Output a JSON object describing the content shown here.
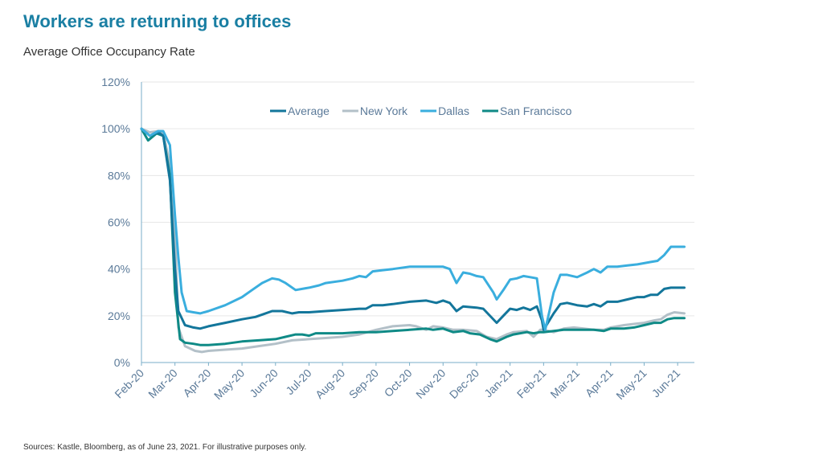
{
  "header": {
    "title": "Workers are returning to offices",
    "subtitle": "Average Office Occupancy Rate"
  },
  "footnote": "Sources: Kastle, Bloomberg, as of June 23, 2021. For illustrative purposes only.",
  "colors": {
    "title": "#1a7fa3",
    "Average": "#13769b",
    "New York": "#b3c0c8",
    "Dallas": "#3aaede",
    "San Francisco": "#0f8a86",
    "axis_text": "#5b7a99",
    "axis_line": "#7aaec8",
    "grid": "#e6e6e6"
  },
  "chart_data": {
    "type": "line",
    "title": "Workers are returning to offices",
    "subtitle": "Average Office Occupancy Rate",
    "xlabel": "",
    "ylabel": "",
    "x_tick_labels": [
      "Feb-20",
      "Mar-20",
      "Apr-20",
      "May-20",
      "Jun-20",
      "Jul-20",
      "Aug-20",
      "Sep-20",
      "Oct-20",
      "Nov-20",
      "Dec-20",
      "Jan-21",
      "Feb-21",
      "Mar-21",
      "Apr-21",
      "May-21",
      "Jun-21"
    ],
    "y_tick_labels": [
      "0%",
      "20%",
      "40%",
      "60%",
      "80%",
      "100%",
      "120%"
    ],
    "ylim": [
      0,
      120
    ],
    "xlim": [
      0,
      16.5
    ],
    "grid": "horizontal",
    "legend_position": "top-center",
    "series": [
      {
        "name": "Average",
        "points": [
          [
            0,
            100
          ],
          [
            0.25,
            97
          ],
          [
            0.5,
            98.5
          ],
          [
            0.65,
            97
          ],
          [
            0.85,
            78
          ],
          [
            1.0,
            40
          ],
          [
            1.1,
            22
          ],
          [
            1.3,
            16
          ],
          [
            1.55,
            15
          ],
          [
            1.75,
            14.5
          ],
          [
            2.0,
            15.5
          ],
          [
            2.5,
            17
          ],
          [
            3.0,
            18.5
          ],
          [
            3.4,
            19.5
          ],
          [
            3.7,
            21
          ],
          [
            3.9,
            22
          ],
          [
            4.2,
            22
          ],
          [
            4.5,
            21
          ],
          [
            4.7,
            21.5
          ],
          [
            5.0,
            21.5
          ],
          [
            5.5,
            22
          ],
          [
            6.0,
            22.5
          ],
          [
            6.5,
            23
          ],
          [
            6.7,
            23
          ],
          [
            6.9,
            24.5
          ],
          [
            7.2,
            24.5
          ],
          [
            7.5,
            25
          ],
          [
            8.0,
            26
          ],
          [
            8.5,
            26.5
          ],
          [
            8.8,
            25.5
          ],
          [
            9.0,
            26.5
          ],
          [
            9.2,
            25.5
          ],
          [
            9.4,
            22
          ],
          [
            9.6,
            24
          ],
          [
            10.0,
            23.5
          ],
          [
            10.2,
            23
          ],
          [
            10.6,
            17
          ],
          [
            10.8,
            20
          ],
          [
            11.0,
            23
          ],
          [
            11.2,
            22.5
          ],
          [
            11.4,
            23.5
          ],
          [
            11.6,
            22.5
          ],
          [
            11.8,
            24
          ],
          [
            11.95,
            18
          ],
          [
            12.0,
            14
          ],
          [
            12.3,
            21
          ],
          [
            12.5,
            25
          ],
          [
            12.7,
            25.5
          ],
          [
            13.0,
            24.5
          ],
          [
            13.3,
            24
          ],
          [
            13.5,
            25
          ],
          [
            13.7,
            24
          ],
          [
            13.9,
            26
          ],
          [
            14.2,
            26
          ],
          [
            14.5,
            27
          ],
          [
            14.8,
            28
          ],
          [
            15.0,
            28
          ],
          [
            15.2,
            29
          ],
          [
            15.4,
            29
          ],
          [
            15.6,
            31.5
          ],
          [
            15.8,
            32
          ],
          [
            16.0,
            32
          ],
          [
            16.2,
            32
          ]
        ]
      },
      {
        "name": "New York",
        "points": [
          [
            0,
            100
          ],
          [
            0.25,
            98.5
          ],
          [
            0.5,
            99
          ],
          [
            0.65,
            98
          ],
          [
            0.85,
            85
          ],
          [
            1.0,
            55
          ],
          [
            1.1,
            15
          ],
          [
            1.3,
            7
          ],
          [
            1.6,
            5
          ],
          [
            1.8,
            4.5
          ],
          [
            2.0,
            5
          ],
          [
            2.5,
            5.5
          ],
          [
            3.0,
            6
          ],
          [
            3.5,
            7
          ],
          [
            4.0,
            8
          ],
          [
            4.5,
            9.5
          ],
          [
            5.0,
            10
          ],
          [
            5.5,
            10.5
          ],
          [
            6.0,
            11
          ],
          [
            6.5,
            12
          ],
          [
            7.0,
            14
          ],
          [
            7.5,
            15.5
          ],
          [
            8.0,
            16
          ],
          [
            8.2,
            15.5
          ],
          [
            8.5,
            14
          ],
          [
            8.7,
            15.5
          ],
          [
            9.0,
            15
          ],
          [
            9.3,
            14
          ],
          [
            9.6,
            14
          ],
          [
            10.0,
            13.5
          ],
          [
            10.3,
            11
          ],
          [
            10.6,
            10
          ],
          [
            10.9,
            12
          ],
          [
            11.1,
            13
          ],
          [
            11.5,
            13.5
          ],
          [
            11.7,
            11
          ],
          [
            11.9,
            14
          ],
          [
            12.0,
            14
          ],
          [
            12.3,
            13
          ],
          [
            12.6,
            14.5
          ],
          [
            12.9,
            15
          ],
          [
            13.2,
            14.5
          ],
          [
            13.5,
            14
          ],
          [
            13.8,
            14
          ],
          [
            14.0,
            15
          ],
          [
            14.4,
            16
          ],
          [
            14.7,
            16.5
          ],
          [
            15.0,
            17
          ],
          [
            15.3,
            18
          ],
          [
            15.5,
            18.5
          ],
          [
            15.7,
            20.5
          ],
          [
            15.9,
            21.5
          ],
          [
            16.2,
            21
          ]
        ]
      },
      {
        "name": "Dallas",
        "points": [
          [
            0,
            100
          ],
          [
            0.25,
            97
          ],
          [
            0.5,
            99
          ],
          [
            0.65,
            99
          ],
          [
            0.85,
            93
          ],
          [
            1.0,
            63
          ],
          [
            1.1,
            45
          ],
          [
            1.2,
            30
          ],
          [
            1.35,
            22
          ],
          [
            1.55,
            21.5
          ],
          [
            1.75,
            21
          ],
          [
            2.0,
            22
          ],
          [
            2.5,
            24.5
          ],
          [
            3.0,
            28
          ],
          [
            3.3,
            31
          ],
          [
            3.6,
            34
          ],
          [
            3.9,
            36
          ],
          [
            4.1,
            35.5
          ],
          [
            4.3,
            34
          ],
          [
            4.6,
            31
          ],
          [
            5.0,
            32
          ],
          [
            5.3,
            33
          ],
          [
            5.5,
            34
          ],
          [
            6.0,
            35
          ],
          [
            6.3,
            36
          ],
          [
            6.5,
            37
          ],
          [
            6.7,
            36.5
          ],
          [
            6.9,
            39
          ],
          [
            7.2,
            39.5
          ],
          [
            7.5,
            40
          ],
          [
            8.0,
            41
          ],
          [
            8.3,
            41
          ],
          [
            8.5,
            41
          ],
          [
            8.8,
            41
          ],
          [
            9.0,
            41
          ],
          [
            9.2,
            40
          ],
          [
            9.4,
            34
          ],
          [
            9.6,
            38.5
          ],
          [
            9.8,
            38
          ],
          [
            10.0,
            37
          ],
          [
            10.2,
            36.5
          ],
          [
            10.5,
            30
          ],
          [
            10.6,
            27
          ],
          [
            10.8,
            31
          ],
          [
            11.0,
            35.5
          ],
          [
            11.2,
            36
          ],
          [
            11.4,
            37
          ],
          [
            11.6,
            36.5
          ],
          [
            11.8,
            36
          ],
          [
            11.95,
            20
          ],
          [
            12.05,
            14
          ],
          [
            12.3,
            30
          ],
          [
            12.5,
            37.5
          ],
          [
            12.7,
            37.5
          ],
          [
            13.0,
            36.5
          ],
          [
            13.3,
            38.5
          ],
          [
            13.5,
            40
          ],
          [
            13.7,
            38.5
          ],
          [
            13.9,
            41
          ],
          [
            14.2,
            41
          ],
          [
            14.5,
            41.5
          ],
          [
            14.8,
            42
          ],
          [
            15.0,
            42.5
          ],
          [
            15.2,
            43
          ],
          [
            15.4,
            43.5
          ],
          [
            15.6,
            46
          ],
          [
            15.8,
            49.5
          ],
          [
            16.0,
            49.5
          ],
          [
            16.2,
            49.5
          ]
        ]
      },
      {
        "name": "San Francisco",
        "points": [
          [
            0,
            100
          ],
          [
            0.2,
            95
          ],
          [
            0.45,
            98
          ],
          [
            0.65,
            97
          ],
          [
            0.85,
            80
          ],
          [
            1.0,
            30
          ],
          [
            1.15,
            10
          ],
          [
            1.3,
            8.5
          ],
          [
            1.55,
            8
          ],
          [
            1.75,
            7.5
          ],
          [
            2.0,
            7.5
          ],
          [
            2.5,
            8
          ],
          [
            3.0,
            9
          ],
          [
            3.5,
            9.5
          ],
          [
            4.0,
            10
          ],
          [
            4.3,
            11
          ],
          [
            4.6,
            12
          ],
          [
            4.8,
            12
          ],
          [
            5.0,
            11.5
          ],
          [
            5.2,
            12.5
          ],
          [
            5.5,
            12.5
          ],
          [
            6.0,
            12.5
          ],
          [
            6.5,
            13
          ],
          [
            7.0,
            13
          ],
          [
            7.5,
            13.5
          ],
          [
            8.0,
            14
          ],
          [
            8.5,
            14.5
          ],
          [
            8.7,
            14
          ],
          [
            9.0,
            14.5
          ],
          [
            9.3,
            13
          ],
          [
            9.6,
            13.5
          ],
          [
            9.8,
            12.5
          ],
          [
            10.1,
            12
          ],
          [
            10.4,
            10
          ],
          [
            10.6,
            9
          ],
          [
            10.9,
            11
          ],
          [
            11.1,
            12
          ],
          [
            11.5,
            13
          ],
          [
            11.7,
            12.5
          ],
          [
            11.9,
            13
          ],
          [
            12.0,
            13
          ],
          [
            12.3,
            13.5
          ],
          [
            12.6,
            14
          ],
          [
            12.9,
            14
          ],
          [
            13.2,
            14
          ],
          [
            13.5,
            14
          ],
          [
            13.8,
            13.5
          ],
          [
            14.0,
            14.5
          ],
          [
            14.4,
            14.5
          ],
          [
            14.7,
            15
          ],
          [
            15.0,
            16
          ],
          [
            15.3,
            17
          ],
          [
            15.5,
            17
          ],
          [
            15.7,
            18.5
          ],
          [
            15.9,
            19
          ],
          [
            16.2,
            19
          ]
        ]
      }
    ]
  }
}
